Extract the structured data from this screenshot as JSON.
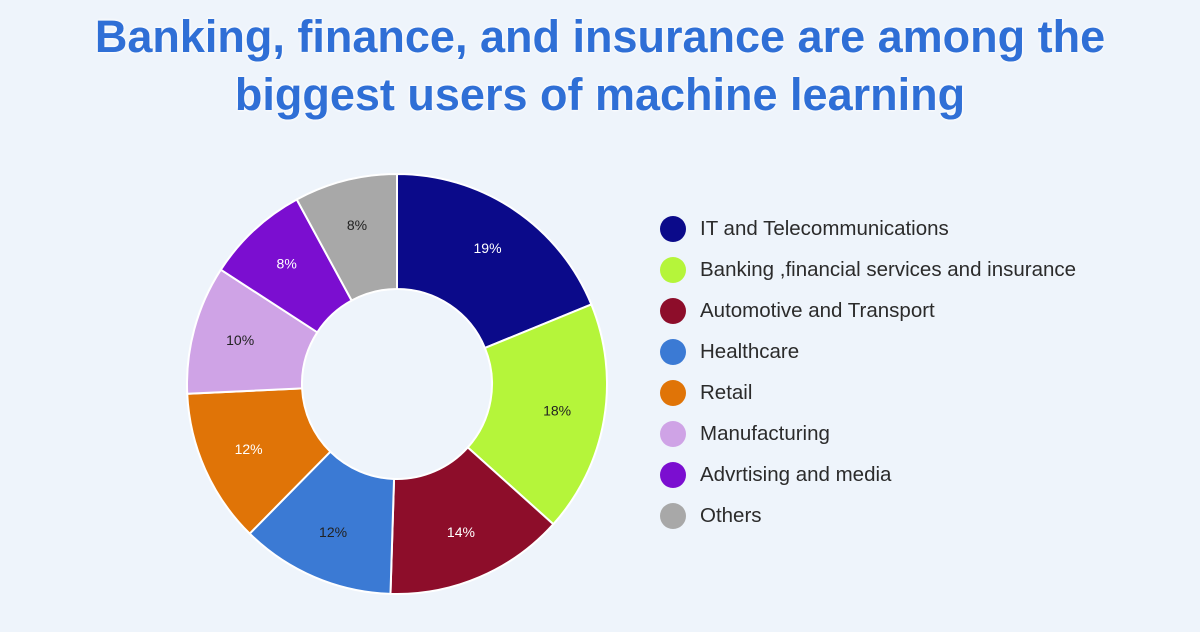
{
  "title": {
    "line1": "Banking, finance, and insurance are among the",
    "line2": "biggest users of machine learning"
  },
  "chart_data": {
    "type": "pie",
    "donut": true,
    "title": "Banking, finance, and insurance are among the biggest users of machine learning",
    "legend_position": "right",
    "slices": [
      {
        "name": "IT and Telecommunications",
        "value": 19,
        "label": "19%",
        "color": "#0b0a8a",
        "label_color": "#ffffff"
      },
      {
        "name": "Banking ,financial services and insurance",
        "value": 18,
        "label": "18%",
        "color": "#b5f53a",
        "label_color": "#222222"
      },
      {
        "name": "Automotive and Transport",
        "value": 14,
        "label": "14%",
        "color": "#8d0d2a",
        "label_color": "#ffffff"
      },
      {
        "name": "Healthcare",
        "value": 12,
        "label": "12%",
        "color": "#3b7ad4",
        "label_color": "#222222"
      },
      {
        "name": "Retail",
        "value": 12,
        "label": "12%",
        "color": "#e07407",
        "label_color": "#ffffff"
      },
      {
        "name": "Manufacturing",
        "value": 10,
        "label": "10%",
        "color": "#cfa3e6",
        "label_color": "#222222"
      },
      {
        "name": "Advrtising and media",
        "value": 8,
        "label": "8%",
        "color": "#7b0ed0",
        "label_color": "#ffffff"
      },
      {
        "name": "Others",
        "value": 8,
        "label": "8%",
        "color": "#a8a8a8",
        "label_color": "#222222"
      }
    ]
  }
}
